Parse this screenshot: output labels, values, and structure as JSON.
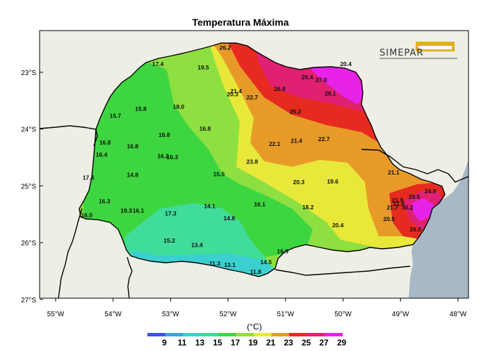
{
  "title": "Temperatura Máxima",
  "logo_text": "SIMEPAR",
  "unit": "(°C)",
  "colors": {
    "ocean": "#a7b8c6",
    "land_outside": "#eeeee6",
    "border": "#000000",
    "scale": [
      "#3b55e0",
      "#3aa0e6",
      "#3ccfcf",
      "#40dc9a",
      "#3ed640",
      "#8ee040",
      "#e8e83a",
      "#e89a28",
      "#e62a20",
      "#e02070",
      "#e622e6"
    ]
  },
  "lat_ticks": [
    "23°S",
    "24°S",
    "25°S",
    "26°S",
    "27°S"
  ],
  "lon_ticks": [
    "55°W",
    "54°W",
    "53°W",
    "52°W",
    "51°W",
    "50°W",
    "49°W",
    "48°W"
  ],
  "colorbar_labels": [
    "9",
    "11",
    "13",
    "15",
    "17",
    "19",
    "21",
    "23",
    "25",
    "27",
    "29"
  ],
  "stations": [
    {
      "v": "17.4",
      "lon": -53.22,
      "lat": -22.89
    },
    {
      "v": "19.5",
      "lon": -52.43,
      "lat": -22.95
    },
    {
      "v": "26.2",
      "lon": -52.05,
      "lat": -22.6
    },
    {
      "v": "20.4",
      "lon": -49.95,
      "lat": -22.89
    },
    {
      "v": "21.4",
      "lon": -51.86,
      "lat": -23.37
    },
    {
      "v": "20.3",
      "lon": -51.92,
      "lat": -23.42
    },
    {
      "v": "22.7",
      "lon": -51.58,
      "lat": -23.48
    },
    {
      "v": "26.8",
      "lon": -51.1,
      "lat": -23.33
    },
    {
      "v": "26.4",
      "lon": -50.62,
      "lat": -23.12
    },
    {
      "v": "27.0",
      "lon": -50.38,
      "lat": -23.17
    },
    {
      "v": "28.1",
      "lon": -50.22,
      "lat": -23.41
    },
    {
      "v": "15.8",
      "lon": -53.52,
      "lat": -23.68
    },
    {
      "v": "18.0",
      "lon": -52.86,
      "lat": -23.64
    },
    {
      "v": "15.7",
      "lon": -53.96,
      "lat": -23.8
    },
    {
      "v": "25.2",
      "lon": -50.83,
      "lat": -23.73
    },
    {
      "v": "16.8",
      "lon": -53.11,
      "lat": -24.14
    },
    {
      "v": "16.8",
      "lon": -52.4,
      "lat": -24.03
    },
    {
      "v": "22.1",
      "lon": -51.19,
      "lat": -24.3
    },
    {
      "v": "21.4",
      "lon": -50.81,
      "lat": -24.24
    },
    {
      "v": "22.7",
      "lon": -50.33,
      "lat": -24.21
    },
    {
      "v": "16.8",
      "lon": -54.14,
      "lat": -24.27
    },
    {
      "v": "16.8",
      "lon": -53.66,
      "lat": -24.34
    },
    {
      "v": "16.4",
      "lon": -54.2,
      "lat": -24.49
    },
    {
      "v": "16.2",
      "lon": -53.13,
      "lat": -24.51
    },
    {
      "v": "16.3",
      "lon": -52.97,
      "lat": -24.53
    },
    {
      "v": "23.8",
      "lon": -51.58,
      "lat": -24.61
    },
    {
      "v": "14.8",
      "lon": -53.66,
      "lat": -24.84
    },
    {
      "v": "15.5",
      "lon": -52.16,
      "lat": -24.83
    },
    {
      "v": "21.1",
      "lon": -49.12,
      "lat": -24.8
    },
    {
      "v": "17.4",
      "lon": -54.43,
      "lat": -24.89
    },
    {
      "v": "20.3",
      "lon": -50.77,
      "lat": -24.97
    },
    {
      "v": "19.6",
      "lon": -50.18,
      "lat": -24.96
    },
    {
      "v": "24.9",
      "lon": -48.48,
      "lat": -25.13
    },
    {
      "v": "16.3",
      "lon": -54.15,
      "lat": -25.31
    },
    {
      "v": "21.9",
      "lon": -49.05,
      "lat": -25.29
    },
    {
      "v": "21.9",
      "lon": -49.03,
      "lat": -25.35
    },
    {
      "v": "21.7",
      "lon": -49.14,
      "lat": -25.42
    },
    {
      "v": "14.1",
      "lon": -52.32,
      "lat": -25.39
    },
    {
      "v": "16.1",
      "lon": -51.45,
      "lat": -25.36
    },
    {
      "v": "18.2",
      "lon": -50.61,
      "lat": -25.41
    },
    {
      "v": "29.5",
      "lon": -48.76,
      "lat": -25.23
    },
    {
      "v": "30.2",
      "lon": -48.88,
      "lat": -25.42
    },
    {
      "v": "19.3",
      "lon": -53.77,
      "lat": -25.47
    },
    {
      "v": "16.1",
      "lon": -53.56,
      "lat": -25.47
    },
    {
      "v": "17.3",
      "lon": -53.0,
      "lat": -25.52
    },
    {
      "v": "16.0",
      "lon": -54.46,
      "lat": -25.55
    },
    {
      "v": "14.8",
      "lon": -51.98,
      "lat": -25.61
    },
    {
      "v": "20.5",
      "lon": -49.2,
      "lat": -25.62
    },
    {
      "v": "20.4",
      "lon": -50.09,
      "lat": -25.73
    },
    {
      "v": "26.0",
      "lon": -48.74,
      "lat": -25.8
    },
    {
      "v": "15.2",
      "lon": -53.02,
      "lat": -26.0
    },
    {
      "v": "13.4",
      "lon": -52.54,
      "lat": -26.08
    },
    {
      "v": "16.9",
      "lon": -51.05,
      "lat": -26.19
    },
    {
      "v": "11.3",
      "lon": -52.23,
      "lat": -26.4
    },
    {
      "v": "13.1",
      "lon": -51.97,
      "lat": -26.43
    },
    {
      "v": "14.5",
      "lon": -51.34,
      "lat": -26.38
    },
    {
      "v": "11.8",
      "lon": -51.52,
      "lat": -26.55
    }
  ]
}
